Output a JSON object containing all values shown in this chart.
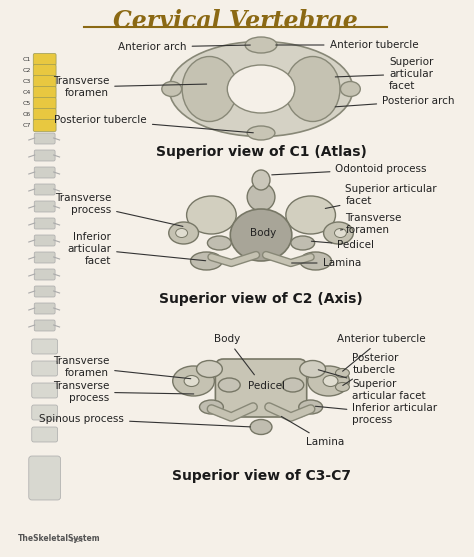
{
  "title": "Cervical Vertebrae",
  "title_color": "#8B6914",
  "background_color": "#f5f0e8",
  "label_color": "#222222",
  "section_titles": [
    "Superior view of C1 (Atlas)",
    "Superior view of C2 (Axis)",
    "Superior view of C3-C7"
  ],
  "section_title_color": "#1a1a1a",
  "watermark": "TheSkeletalSystem",
  "watermark_sub": ".net"
}
